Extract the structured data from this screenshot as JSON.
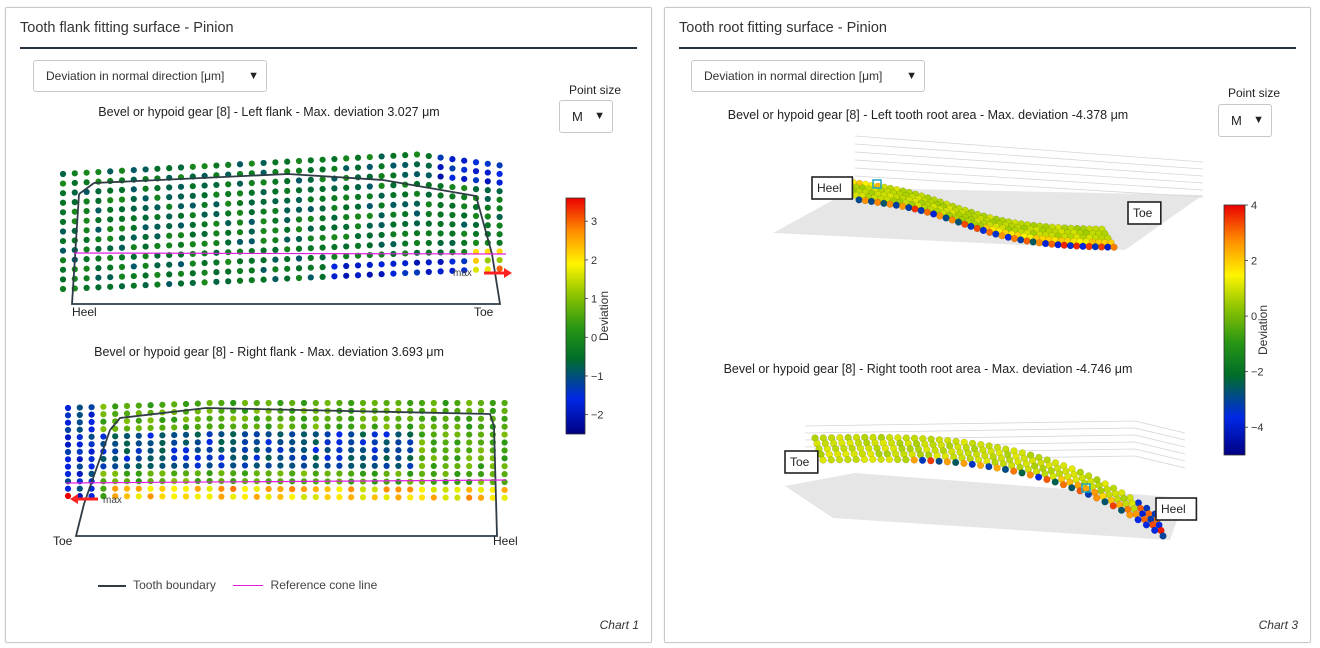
{
  "panels": [
    {
      "title": "Tooth flank fitting surface - Pinion",
      "dropdown": "Deviation in normal direction [μm]",
      "point_size_label": "Point size",
      "point_size": "M",
      "footer": "Chart 1",
      "legend": {
        "boundary": "Tooth boundary",
        "cone": "Reference cone line"
      }
    },
    {
      "title": "Tooth root fitting surface - Pinion",
      "dropdown": "Deviation in normal direction [μm]",
      "point_size_label": "Point size",
      "point_size": "M",
      "footer": "Chart 3"
    }
  ],
  "chart_data": [
    {
      "type": "scatter",
      "title": "Bevel or hypoid gear [8] - Left flank - Max. deviation 3.027 μm",
      "x_labels": [
        "Heel",
        "Toe"
      ],
      "max_marker": "max",
      "max_deviation": 3.027,
      "colorbar": {
        "label": "Deviation",
        "range": [
          -2.5,
          3.6
        ],
        "ticks": [
          3,
          2,
          1,
          0,
          -1,
          -2
        ]
      }
    },
    {
      "type": "scatter",
      "title": "Bevel or hypoid gear [8] - Right flank - Max. deviation 3.693 μm",
      "x_labels": [
        "Toe",
        "Heel"
      ],
      "max_marker": "max",
      "max_deviation": 3.693,
      "colorbar": {
        "label": "Deviation",
        "range": [
          -2.5,
          3.6
        ],
        "ticks": [
          3,
          2,
          1,
          0,
          -1,
          -2
        ]
      }
    },
    {
      "type": "scatter",
      "title": "Bevel or hypoid gear [8] - Left tooth root area - Max. deviation -4.378 μm",
      "end_labels": [
        "Heel",
        "Toe"
      ],
      "max_deviation": -4.378,
      "colorbar": {
        "label": "Deviation",
        "range": [
          -5,
          4
        ],
        "ticks": [
          4,
          2,
          0,
          -2,
          -4
        ]
      }
    },
    {
      "type": "scatter",
      "title": "Bevel or hypoid gear [8] - Right tooth root area - Max. deviation -4.746 μm",
      "end_labels": [
        "Toe",
        "Heel"
      ],
      "max_deviation": -4.746,
      "colorbar": {
        "label": "Deviation",
        "range": [
          -5,
          4
        ],
        "ticks": [
          4,
          2,
          0,
          -2,
          -4
        ]
      }
    }
  ]
}
